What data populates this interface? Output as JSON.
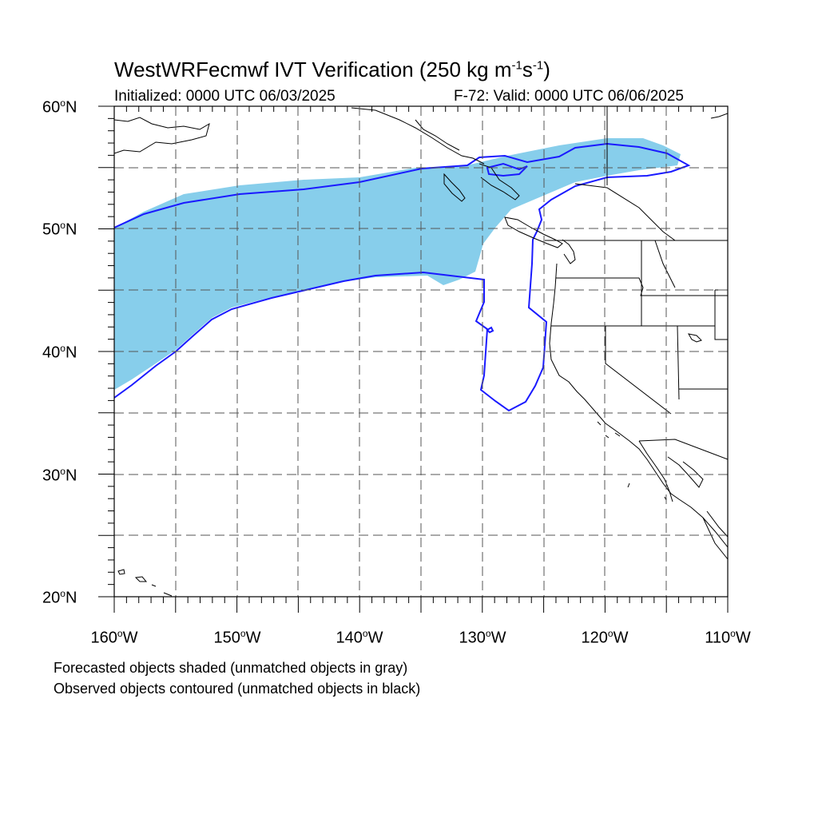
{
  "title": {
    "prefix": "WestWRFecmwf IVT Verification (250 kg m",
    "exp1": "-1",
    "mid": "s",
    "exp2": "-1",
    "suffix": ")"
  },
  "subtitle_left": "Initialized: 0000 UTC 06/03/2025",
  "subtitle_right": "F-72: Valid: 0000 UTC 06/06/2025",
  "lat_labels": [
    {
      "num": "60",
      "deg": "o",
      "hemi": "N"
    },
    {
      "num": "50",
      "deg": "o",
      "hemi": "N"
    },
    {
      "num": "40",
      "deg": "o",
      "hemi": "N"
    },
    {
      "num": "30",
      "deg": "o",
      "hemi": "N"
    },
    {
      "num": "20",
      "deg": "o",
      "hemi": "N"
    }
  ],
  "lon_labels": [
    {
      "num": "160",
      "deg": "o",
      "hemi": "W"
    },
    {
      "num": "150",
      "deg": "o",
      "hemi": "W"
    },
    {
      "num": "140",
      "deg": "o",
      "hemi": "W"
    },
    {
      "num": "130",
      "deg": "o",
      "hemi": "W"
    },
    {
      "num": "120",
      "deg": "o",
      "hemi": "W"
    },
    {
      "num": "110",
      "deg": "o",
      "hemi": "W"
    }
  ],
  "notes": {
    "forecast": "Forecasted objects shaded (unmatched objects in gray)",
    "observed": "Observed objects contoured (unmatched objects in black)"
  },
  "map": {
    "lon_range": [
      -160,
      -110
    ],
    "lat_range": [
      20,
      60
    ],
    "forecast_fill_color": "#87ceeb",
    "observed_contour_color": "#1a1aff",
    "coastline_color": "#000000",
    "grid": "dashed"
  }
}
